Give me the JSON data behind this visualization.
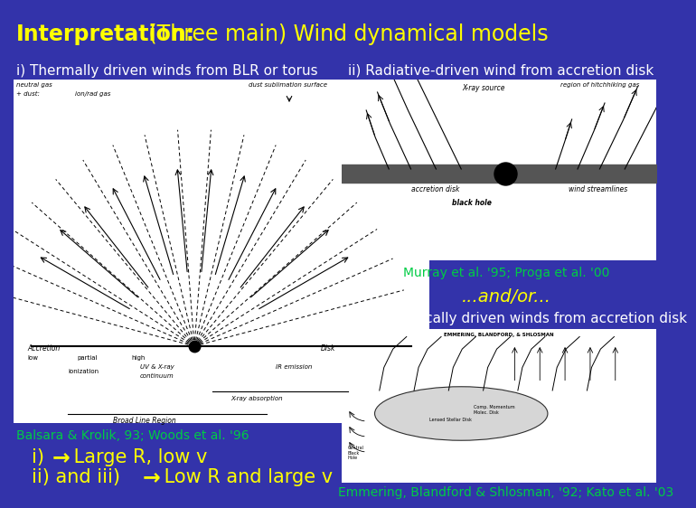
{
  "bg_color": "#3333aa",
  "title_bold": "Interpretation:",
  "title_regular": " (Three main) Wind dynamical models",
  "title_color": "#ffff00",
  "title_fontsize": 17,
  "label_i": "i) Thermally driven winds from BLR or torus",
  "label_ii": "ii) Radiative-driven wind from accretion disk",
  "label_iii": "iii) Magnetically driven winds from accretion disk",
  "label_color": "#ffffff",
  "label_fontsize": 11,
  "murray_text": "Murray et al. '95; Proga et al. '00",
  "murray_color": "#00cc44",
  "murray_fontsize": 10,
  "andor_text": "...and/or...",
  "andor_color": "#ffff00",
  "andor_fontsize": 14,
  "balsara_text": "Balsara & Krolik, 93; Woods et al. '96",
  "balsara_color": "#00cc44",
  "balsara_fontsize": 10,
  "emmering_text": "Emmering, Blandford & Shlosman, '92; Kato et al. '03",
  "emmering_color": "#00cc44",
  "emmering_fontsize": 10,
  "bullet1_pre": "i) ",
  "bullet1_arrow": "→",
  "bullet1_post": " Large R, low v",
  "bullet2_pre": "ii) and iii) ",
  "bullet2_arrow": "→",
  "bullet2_post": " Low R and large v",
  "bullet_color": "#ffff00",
  "bullet_fontsize": 15
}
